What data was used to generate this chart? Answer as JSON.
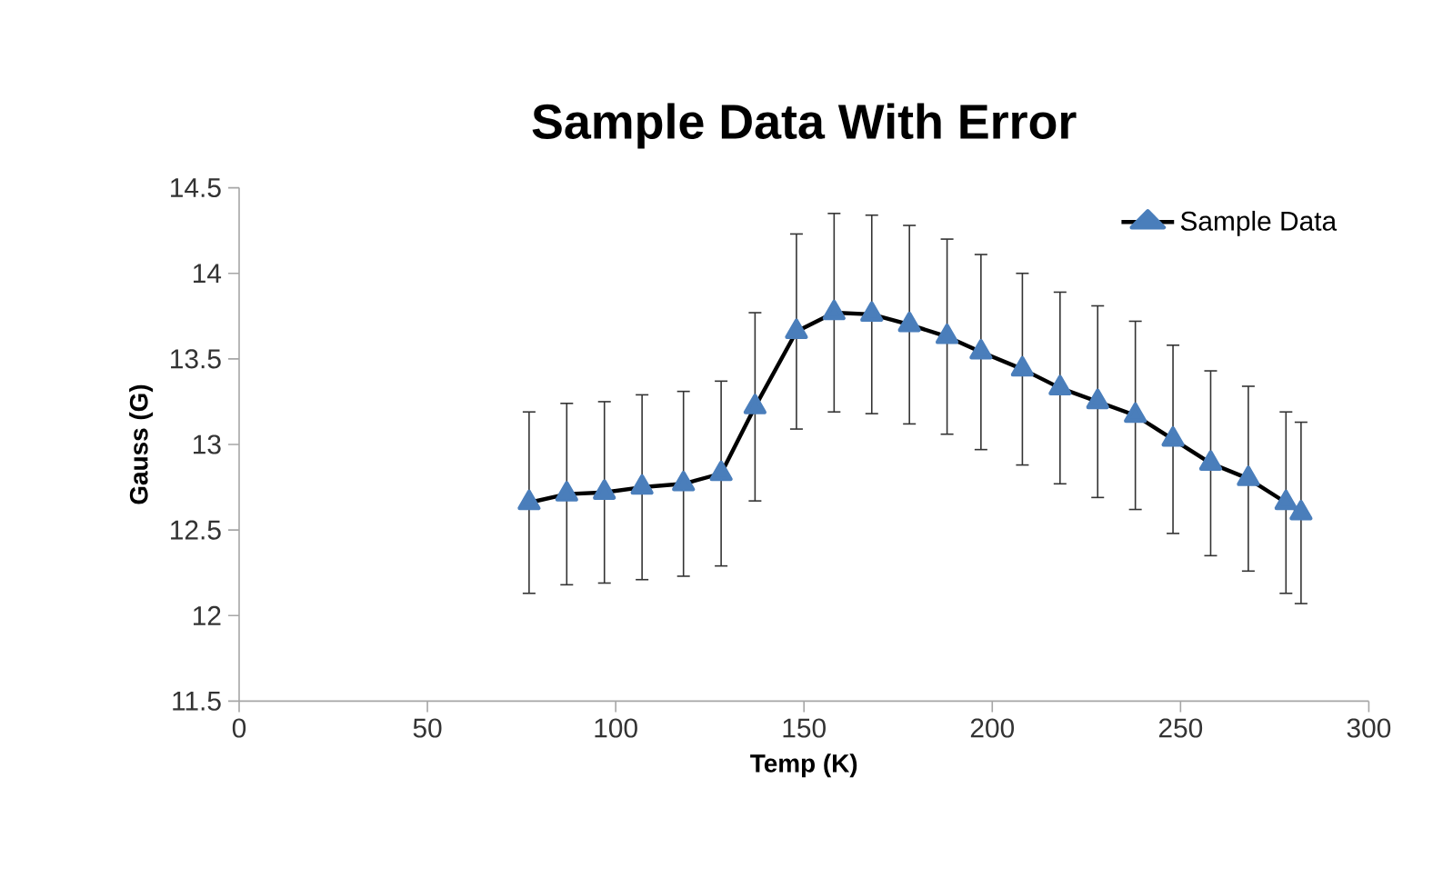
{
  "chart_data": {
    "type": "line",
    "title": "Sample Data With Error",
    "xlabel": "Temp (K)",
    "ylabel": "Gauss (G)",
    "x": [
      77,
      87,
      97,
      107,
      118,
      128,
      137,
      148,
      158,
      168,
      178,
      188,
      197,
      208,
      218,
      228,
      238,
      248,
      258,
      268,
      278,
      282
    ],
    "series": [
      {
        "name": "Sample Data",
        "color": "#4a7ebb",
        "values": [
          12.66,
          12.71,
          12.72,
          12.75,
          12.77,
          12.83,
          13.22,
          13.66,
          13.77,
          13.76,
          13.7,
          13.63,
          13.54,
          13.44,
          13.33,
          13.25,
          13.17,
          13.03,
          12.89,
          12.8,
          12.66,
          12.6
        ],
        "errors": [
          0.53,
          0.53,
          0.53,
          0.54,
          0.54,
          0.54,
          0.55,
          0.57,
          0.58,
          0.58,
          0.58,
          0.57,
          0.57,
          0.56,
          0.56,
          0.56,
          0.55,
          0.55,
          0.54,
          0.54,
          0.53,
          0.53
        ]
      }
    ],
    "xlim": [
      0,
      300
    ],
    "ylim": [
      11.5,
      14.5
    ],
    "xticks": [
      0,
      50,
      100,
      150,
      200,
      250,
      300
    ],
    "yticks": [
      11.5,
      12,
      12.5,
      13,
      13.5,
      14,
      14.5
    ],
    "grid": false,
    "legend": "top right",
    "marker": "triangle",
    "line_style": "solid"
  }
}
